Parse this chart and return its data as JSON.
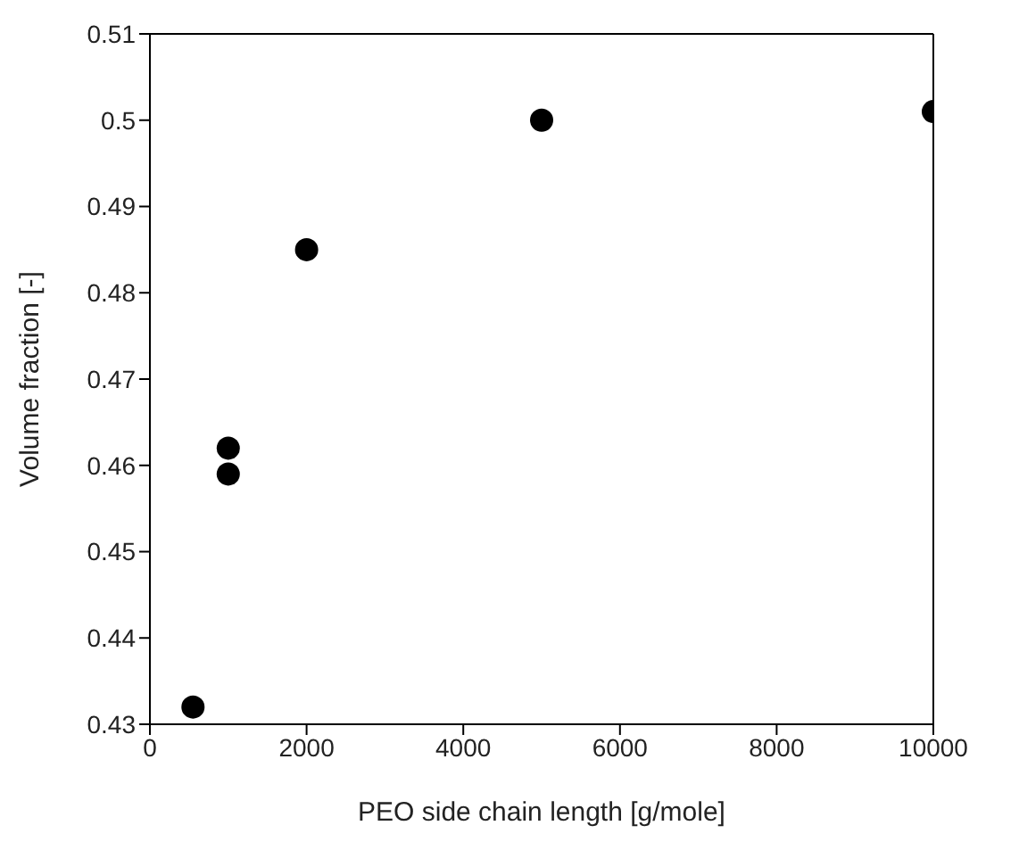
{
  "chart_data": {
    "type": "scatter",
    "xlabel": "PEO side chain length [g/mole]",
    "ylabel": "Volume fraction [-]",
    "x": [
      550,
      1000,
      1000,
      2000,
      5000,
      10000
    ],
    "series": [
      {
        "color": "#000000",
        "values": [
          0.432,
          0.462,
          0.459,
          0.485,
          0.5,
          0.501
        ]
      }
    ],
    "xlim": [
      0,
      10000
    ],
    "xticks": [
      0,
      2000,
      4000,
      6000,
      8000,
      10000
    ],
    "ylim": [
      0.43,
      0.51
    ],
    "yticks": [
      0.43,
      0.44,
      0.45,
      0.46,
      0.47,
      0.48,
      0.49,
      0.5,
      0.51
    ],
    "marker": "circle"
  }
}
